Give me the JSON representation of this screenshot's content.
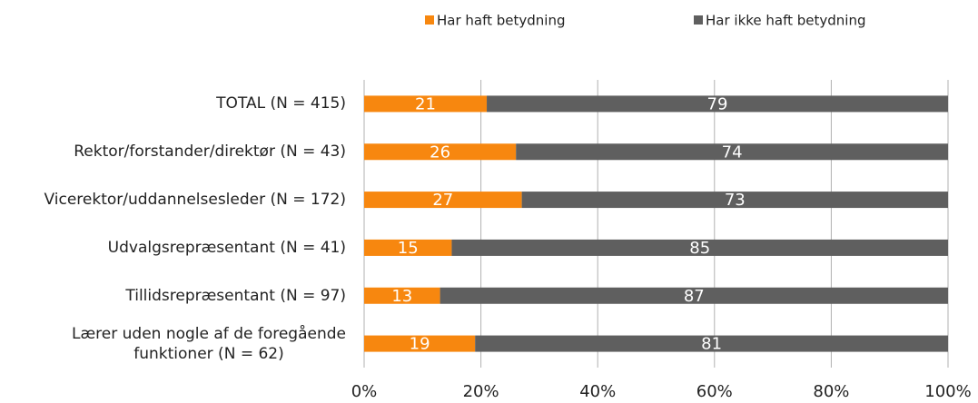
{
  "chart_data": {
    "type": "stacked_barh",
    "categories": [
      "TOTAL (N = 415)",
      "Rektor/forstander/direktør (N = 43)",
      "Vicerektor/uddannelsesleder (N = 172)",
      "Udvalgsrepræsentant (N = 41)",
      "Tillidsrepræsentant (N = 97)",
      "Lærer uden nogle af de foregående\nfunktioner (N = 62)"
    ],
    "series": [
      {
        "name": "Har haft betydning",
        "color": "#f7870f",
        "values": [
          21,
          26,
          27,
          15,
          13,
          19
        ]
      },
      {
        "name": "Har ikke haft betydning",
        "color": "#5f5f5f",
        "values": [
          79,
          74,
          73,
          85,
          87,
          81
        ]
      }
    ],
    "xlim": [
      0,
      100
    ],
    "xticks": [
      {
        "value": 0,
        "label": "0%"
      },
      {
        "value": 20,
        "label": "20%"
      },
      {
        "value": 40,
        "label": "40%"
      },
      {
        "value": 60,
        "label": "60%"
      },
      {
        "value": 80,
        "label": "80%"
      },
      {
        "value": 100,
        "label": "100%"
      }
    ],
    "grid": true,
    "legend": "top"
  }
}
